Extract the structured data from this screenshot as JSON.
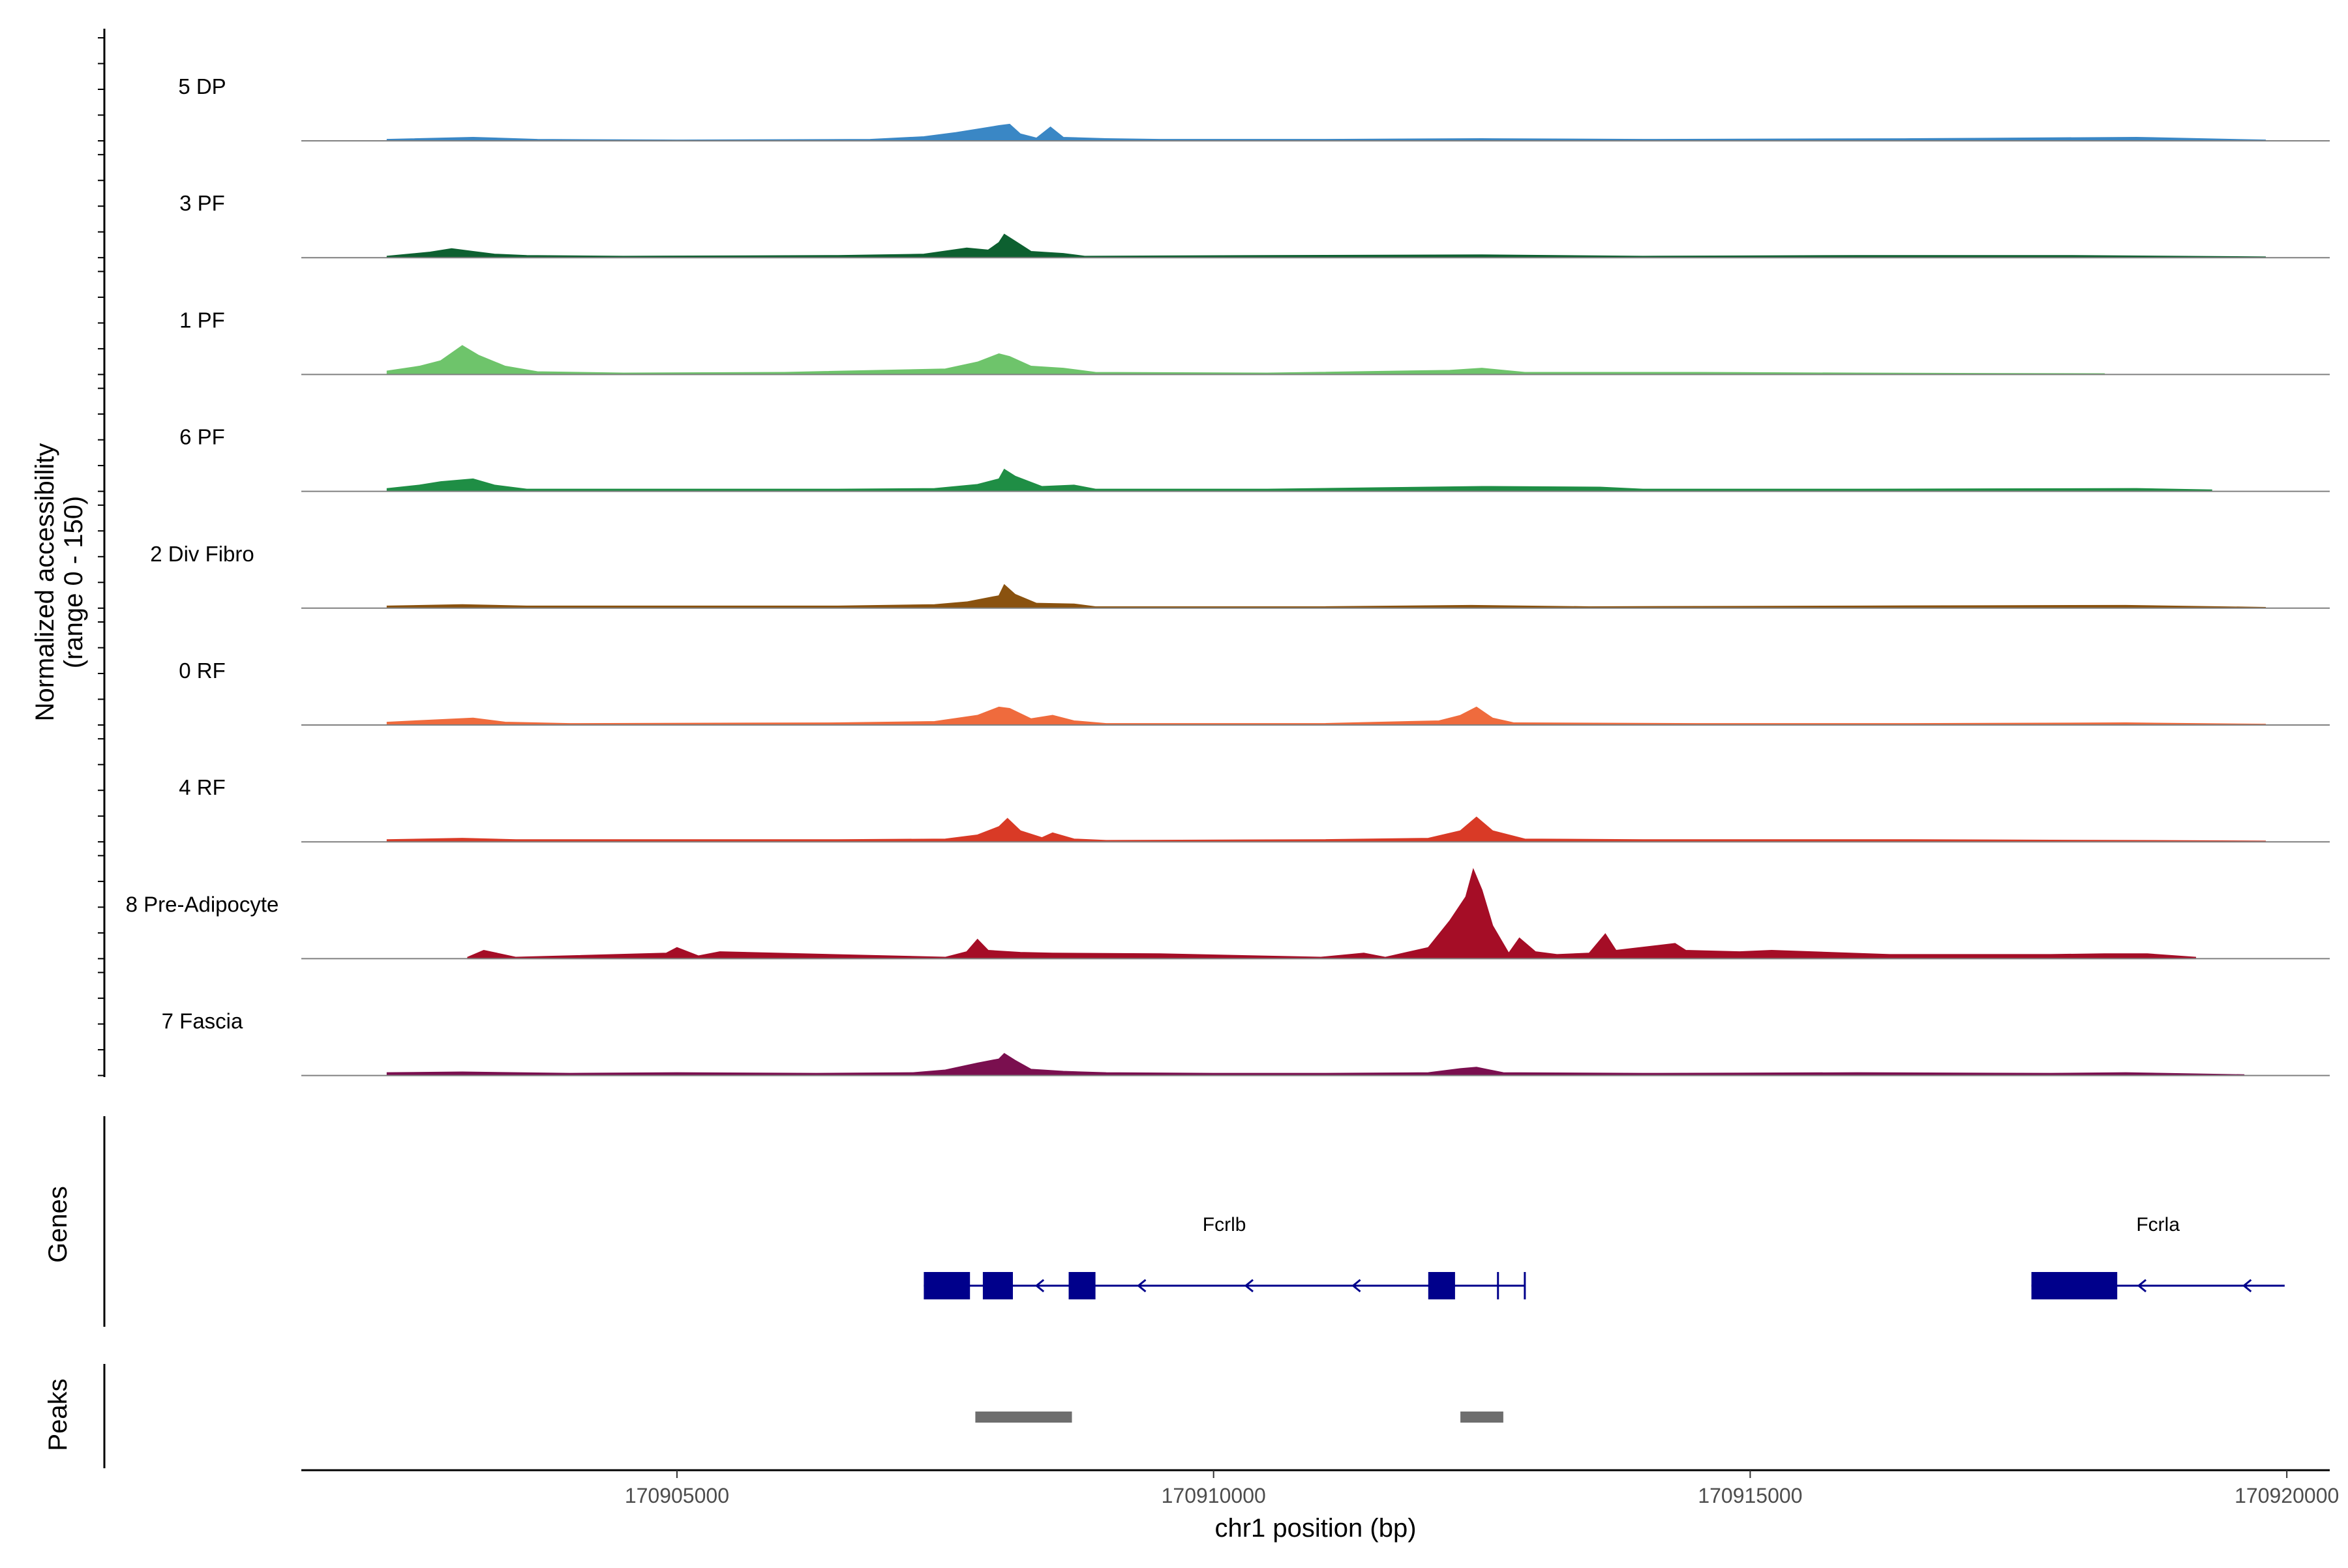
{
  "chart_data": {
    "type": "area",
    "chromosome": "chr1",
    "xlabel": "chr1 position (bp)",
    "ylabel": [
      "Normalized accessibility",
      "(range 0 - 150)"
    ],
    "xlim": [
      170901500,
      170920400
    ],
    "ylim": [
      0,
      150
    ],
    "x_ticks": [
      {
        "value": 170905000,
        "label": "170905000"
      },
      {
        "value": 170910000,
        "label": "170910000"
      },
      {
        "value": 170915000,
        "label": "170915000"
      },
      {
        "value": 170920000,
        "label": "170920000"
      }
    ],
    "tracks_title_genes": "Genes",
    "tracks_title_peaks": "Peaks",
    "grid": false,
    "series": [
      {
        "name": "5 DP",
        "color": "#3a87c5",
        "range": [
          170902300,
          170919800
        ],
        "points": [
          [
            170902300,
            2
          ],
          [
            170903100,
            5
          ],
          [
            170903700,
            2
          ],
          [
            170905000,
            1
          ],
          [
            170906800,
            2
          ],
          [
            170907300,
            6
          ],
          [
            170907600,
            12
          ],
          [
            170907800,
            17
          ],
          [
            170908000,
            22
          ],
          [
            170908100,
            24
          ],
          [
            170908200,
            10
          ],
          [
            170908350,
            4
          ],
          [
            170908480,
            20
          ],
          [
            170908600,
            5
          ],
          [
            170908800,
            4
          ],
          [
            170909000,
            3
          ],
          [
            170909500,
            2
          ],
          [
            170911000,
            2
          ],
          [
            170912500,
            3
          ],
          [
            170914000,
            2
          ],
          [
            170916500,
            3
          ],
          [
            170918600,
            5
          ],
          [
            170919800,
            1
          ]
        ]
      },
      {
        "name": "3 PF",
        "color": "#0d6030",
        "range": [
          170902300,
          170919800
        ],
        "points": [
          [
            170902300,
            2
          ],
          [
            170902700,
            8
          ],
          [
            170902900,
            13
          ],
          [
            170903100,
            9
          ],
          [
            170903300,
            5
          ],
          [
            170903600,
            3
          ],
          [
            170904500,
            2
          ],
          [
            170906500,
            3
          ],
          [
            170907300,
            5
          ],
          [
            170907700,
            14
          ],
          [
            170907900,
            11
          ],
          [
            170908000,
            22
          ],
          [
            170908050,
            34
          ],
          [
            170908150,
            24
          ],
          [
            170908300,
            9
          ],
          [
            170908600,
            6
          ],
          [
            170908800,
            2
          ],
          [
            170910500,
            3
          ],
          [
            170912500,
            4
          ],
          [
            170914000,
            2
          ],
          [
            170916000,
            3
          ],
          [
            170918000,
            3
          ],
          [
            170919800,
            1
          ]
        ]
      },
      {
        "name": "1 PF",
        "color": "#6ec46b",
        "range": [
          170902300,
          170918300
        ],
        "points": [
          [
            170902300,
            5
          ],
          [
            170902600,
            12
          ],
          [
            170902800,
            20
          ],
          [
            170903000,
            42
          ],
          [
            170903150,
            28
          ],
          [
            170903400,
            12
          ],
          [
            170903700,
            4
          ],
          [
            170904500,
            2
          ],
          [
            170906000,
            3
          ],
          [
            170907500,
            8
          ],
          [
            170907800,
            18
          ],
          [
            170908000,
            30
          ],
          [
            170908100,
            26
          ],
          [
            170908300,
            12
          ],
          [
            170908600,
            9
          ],
          [
            170908900,
            3
          ],
          [
            170910500,
            2
          ],
          [
            170912200,
            6
          ],
          [
            170912500,
            9
          ],
          [
            170912900,
            3
          ],
          [
            170914500,
            3
          ],
          [
            170916000,
            2
          ],
          [
            170918300,
            1
          ]
        ]
      },
      {
        "name": "6 PF",
        "color": "#1f8e45",
        "range": [
          170902300,
          170919300
        ],
        "points": [
          [
            170902300,
            4
          ],
          [
            170902600,
            9
          ],
          [
            170902800,
            14
          ],
          [
            170903100,
            18
          ],
          [
            170903300,
            9
          ],
          [
            170903600,
            3
          ],
          [
            170905000,
            3
          ],
          [
            170906500,
            3
          ],
          [
            170907400,
            4
          ],
          [
            170907800,
            10
          ],
          [
            170908000,
            18
          ],
          [
            170908050,
            32
          ],
          [
            170908150,
            22
          ],
          [
            170908400,
            7
          ],
          [
            170908700,
            9
          ],
          [
            170908900,
            3
          ],
          [
            170910500,
            3
          ],
          [
            170911500,
            5
          ],
          [
            170912500,
            7
          ],
          [
            170913600,
            6
          ],
          [
            170914000,
            3
          ],
          [
            170916000,
            3
          ],
          [
            170918600,
            4
          ],
          [
            170919300,
            2
          ]
        ]
      },
      {
        "name": "2 Div Fibro",
        "color": "#8a520f",
        "range": [
          170902300,
          170919800
        ],
        "points": [
          [
            170902300,
            3
          ],
          [
            170903000,
            5
          ],
          [
            170903600,
            3
          ],
          [
            170905000,
            3
          ],
          [
            170906500,
            3
          ],
          [
            170907400,
            5
          ],
          [
            170907700,
            9
          ],
          [
            170908000,
            18
          ],
          [
            170908050,
            34
          ],
          [
            170908150,
            20
          ],
          [
            170908350,
            7
          ],
          [
            170908700,
            6
          ],
          [
            170908900,
            2
          ],
          [
            170911000,
            2
          ],
          [
            170912400,
            4
          ],
          [
            170913500,
            2
          ],
          [
            170916000,
            3
          ],
          [
            170918500,
            4
          ],
          [
            170919800,
            1
          ]
        ]
      },
      {
        "name": "0 RF",
        "color": "#ef6b3d",
        "range": [
          170902300,
          170919800
        ],
        "points": [
          [
            170902300,
            4
          ],
          [
            170902700,
            7
          ],
          [
            170903100,
            10
          ],
          [
            170903400,
            4
          ],
          [
            170904000,
            2
          ],
          [
            170906500,
            3
          ],
          [
            170907400,
            5
          ],
          [
            170907800,
            14
          ],
          [
            170908000,
            26
          ],
          [
            170908100,
            24
          ],
          [
            170908300,
            9
          ],
          [
            170908500,
            14
          ],
          [
            170908700,
            6
          ],
          [
            170909000,
            2
          ],
          [
            170911000,
            2
          ],
          [
            170912100,
            6
          ],
          [
            170912300,
            14
          ],
          [
            170912450,
            26
          ],
          [
            170912600,
            10
          ],
          [
            170912800,
            3
          ],
          [
            170914500,
            2
          ],
          [
            170916500,
            2
          ],
          [
            170918500,
            3
          ],
          [
            170919800,
            1
          ]
        ]
      },
      {
        "name": "4 RF",
        "color": "#d93a26",
        "range": [
          170902300,
          170919800
        ],
        "points": [
          [
            170902300,
            3
          ],
          [
            170903000,
            5
          ],
          [
            170903500,
            3
          ],
          [
            170905000,
            3
          ],
          [
            170906500,
            3
          ],
          [
            170907500,
            4
          ],
          [
            170907800,
            10
          ],
          [
            170908000,
            22
          ],
          [
            170908080,
            34
          ],
          [
            170908200,
            16
          ],
          [
            170908400,
            6
          ],
          [
            170908500,
            13
          ],
          [
            170908700,
            4
          ],
          [
            170909000,
            2
          ],
          [
            170911000,
            3
          ],
          [
            170912000,
            5
          ],
          [
            170912300,
            16
          ],
          [
            170912450,
            36
          ],
          [
            170912600,
            16
          ],
          [
            170912900,
            4
          ],
          [
            170914000,
            3
          ],
          [
            170916500,
            3
          ],
          [
            170918500,
            2
          ],
          [
            170919800,
            1
          ]
        ]
      },
      {
        "name": "8 Pre-Adipocyte",
        "color": "#a50d26",
        "range": [
          170903050,
          170919150
        ],
        "points": [
          [
            170903050,
            2
          ],
          [
            170903200,
            12
          ],
          [
            170903500,
            2
          ],
          [
            170904900,
            8
          ],
          [
            170905000,
            16
          ],
          [
            170905200,
            4
          ],
          [
            170905400,
            10
          ],
          [
            170907500,
            2
          ],
          [
            170907700,
            10
          ],
          [
            170907800,
            28
          ],
          [
            170907900,
            12
          ],
          [
            170908200,
            9
          ],
          [
            170908500,
            8
          ],
          [
            170909500,
            7
          ],
          [
            170911000,
            2
          ],
          [
            170911400,
            8
          ],
          [
            170911600,
            2
          ],
          [
            170912000,
            16
          ],
          [
            170912200,
            55
          ],
          [
            170912350,
            90
          ],
          [
            170912420,
            130
          ],
          [
            170912500,
            100
          ],
          [
            170912600,
            48
          ],
          [
            170912750,
            8
          ],
          [
            170912850,
            30
          ],
          [
            170913000,
            10
          ],
          [
            170913200,
            6
          ],
          [
            170913500,
            8
          ],
          [
            170913650,
            36
          ],
          [
            170913750,
            12
          ],
          [
            170914300,
            22
          ],
          [
            170914400,
            12
          ],
          [
            170914900,
            10
          ],
          [
            170915200,
            12
          ],
          [
            170916300,
            6
          ],
          [
            170916700,
            6
          ],
          [
            170917800,
            6
          ],
          [
            170918300,
            7
          ],
          [
            170918700,
            7
          ],
          [
            170919150,
            2
          ]
        ]
      },
      {
        "name": "7 Fascia",
        "color": "#7a0f4f",
        "range": [
          170902300,
          170919600
        ],
        "points": [
          [
            170902300,
            4
          ],
          [
            170903000,
            5
          ],
          [
            170904000,
            3
          ],
          [
            170905000,
            4
          ],
          [
            170906300,
            3
          ],
          [
            170907200,
            4
          ],
          [
            170907500,
            8
          ],
          [
            170907800,
            18
          ],
          [
            170908000,
            24
          ],
          [
            170908050,
            32
          ],
          [
            170908150,
            22
          ],
          [
            170908300,
            9
          ],
          [
            170908600,
            6
          ],
          [
            170909000,
            4
          ],
          [
            170910000,
            3
          ],
          [
            170911000,
            3
          ],
          [
            170912000,
            4
          ],
          [
            170912300,
            10
          ],
          [
            170912450,
            12
          ],
          [
            170912700,
            4
          ],
          [
            170914000,
            3
          ],
          [
            170916000,
            4
          ],
          [
            170917800,
            3
          ],
          [
            170918500,
            4
          ],
          [
            170919600,
            1
          ]
        ]
      }
    ],
    "genes": [
      {
        "name": "Fcrlb",
        "strand": "-",
        "start": 170907300,
        "end": 170912900,
        "exons": [
          [
            170907300,
            170907730
          ],
          [
            170907850,
            170908130
          ],
          [
            170908650,
            170908900
          ],
          [
            170912000,
            170912250
          ]
        ],
        "tss_marks": [
          170912650,
          170912900
        ],
        "arrows": [
          170908350,
          170909300,
          170910300,
          170911300,
          170912100
        ]
      },
      {
        "name": "Fcrla",
        "strand": "-",
        "start": 170917620,
        "end": 170919980,
        "exons": [
          [
            170917620,
            170918420
          ]
        ],
        "tss_marks": [],
        "arrows": [
          170918620,
          170919600
        ]
      }
    ],
    "peaks": [
      {
        "start": 170907780,
        "end": 170908680
      },
      {
        "start": 170912300,
        "end": 170912700
      }
    ]
  }
}
